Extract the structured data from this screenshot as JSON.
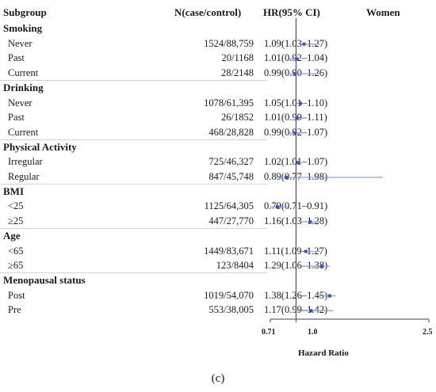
{
  "headers": {
    "subgroup": "Subgroup",
    "n": "N(case/control)",
    "hr": "HR(95% CI)",
    "plot": "Women"
  },
  "rows": [
    {
      "type": "group",
      "label": "Smoking"
    },
    {
      "type": "item",
      "label": "Never",
      "n": "1524/88,759",
      "hr_text": "1.09(1.03–1.27)"
    },
    {
      "type": "item",
      "label": "Past",
      "n": "20/1168",
      "hr_text": "1.01(0.92–1.04)"
    },
    {
      "type": "item",
      "label": "Current",
      "n": "28/2148",
      "hr_text": "0.99(0.90–1.26)"
    },
    {
      "type": "group",
      "label": "Drinking"
    },
    {
      "type": "item",
      "label": "Never",
      "n": "1078/61,395",
      "hr_text": "1.05(1.01–1.10)"
    },
    {
      "type": "item",
      "label": "Past",
      "n": "26/1852",
      "hr_text": "1.01(0.99–1.11)"
    },
    {
      "type": "item",
      "label": "Current",
      "n": "468/28,828",
      "hr_text": "0.99(0.92–1.07)"
    },
    {
      "type": "group",
      "label": "Physical Activity"
    },
    {
      "type": "item",
      "label": "Irregular",
      "n": "725/46,327",
      "hr_text": "1.02(1.01–1.07)"
    },
    {
      "type": "item",
      "label": "Regular",
      "n": "847/45,748",
      "hr_text": "0.89(0.77–1.98)"
    },
    {
      "type": "group",
      "label": "BMI"
    },
    {
      "type": "item",
      "label": "<25",
      "n": "1125/64,305",
      "hr_text": "0.79(0.71–0.91)"
    },
    {
      "type": "item",
      "label": "≥25",
      "n": "447/27,770",
      "hr_text": "1.16(1.03–1.28)"
    },
    {
      "type": "group",
      "label": "Age"
    },
    {
      "type": "item",
      "label": "<65",
      "n": "1449/83,671",
      "hr_text": "1.11(1.09–1.27)"
    },
    {
      "type": "item",
      "label": "≥65",
      "n": "123/8404",
      "hr_text": "1.29(1.06–1.38)"
    },
    {
      "type": "group",
      "label": "Menopausal status"
    },
    {
      "type": "item",
      "label": "Post",
      "n": "1019/54,070",
      "hr_text": "1.38(1.26–1.45)"
    },
    {
      "type": "item",
      "label": "Pre",
      "n": "553/38,005",
      "hr_text": "1.17(0.99–1.42)"
    }
  ],
  "chart_data": {
    "type": "forest",
    "title": "Women",
    "xlabel": "Hazard Ratio",
    "xlim": [
      0.71,
      2.5
    ],
    "ticks": [
      0.71,
      1.0,
      2.5
    ],
    "tick_labels": [
      "0.71",
      "1.0",
      "2.5"
    ],
    "reference_line": 1.0,
    "estimates": [
      {
        "group": "Smoking",
        "label": "Never",
        "hr": 1.09,
        "lo": 1.03,
        "hi": 1.27
      },
      {
        "group": "Smoking",
        "label": "Past",
        "hr": 1.01,
        "lo": 0.92,
        "hi": 1.04
      },
      {
        "group": "Smoking",
        "label": "Current",
        "hr": 0.99,
        "lo": 0.9,
        "hi": 1.26
      },
      {
        "group": "Drinking",
        "label": "Never",
        "hr": 1.05,
        "lo": 1.01,
        "hi": 1.1
      },
      {
        "group": "Drinking",
        "label": "Past",
        "hr": 1.01,
        "lo": 0.99,
        "hi": 1.11
      },
      {
        "group": "Drinking",
        "label": "Current",
        "hr": 0.99,
        "lo": 0.92,
        "hi": 1.07
      },
      {
        "group": "Physical Activity",
        "label": "Irregular",
        "hr": 1.02,
        "lo": 1.01,
        "hi": 1.07
      },
      {
        "group": "Physical Activity",
        "label": "Regular",
        "hr": 0.89,
        "lo": 0.77,
        "hi": 1.98
      },
      {
        "group": "BMI",
        "label": "<25",
        "hr": 0.79,
        "lo": 0.71,
        "hi": 0.91
      },
      {
        "group": "BMI",
        "label": "≥25",
        "hr": 1.16,
        "lo": 1.03,
        "hi": 1.28
      },
      {
        "group": "Age",
        "label": "<65",
        "hr": 1.11,
        "lo": 1.09,
        "hi": 1.27
      },
      {
        "group": "Age",
        "label": "≥65",
        "hr": 1.29,
        "lo": 1.06,
        "hi": 1.38
      },
      {
        "group": "Menopausal status",
        "label": "Post",
        "hr": 1.38,
        "lo": 1.26,
        "hi": 1.45
      },
      {
        "group": "Menopausal status",
        "label": "Pre",
        "hr": 1.17,
        "lo": 0.99,
        "hi": 1.42
      }
    ],
    "colors": {
      "marker": "#3a55b4",
      "ci": "#8fa0d8",
      "ref_line": "#333333"
    }
  },
  "caption": "(c)"
}
